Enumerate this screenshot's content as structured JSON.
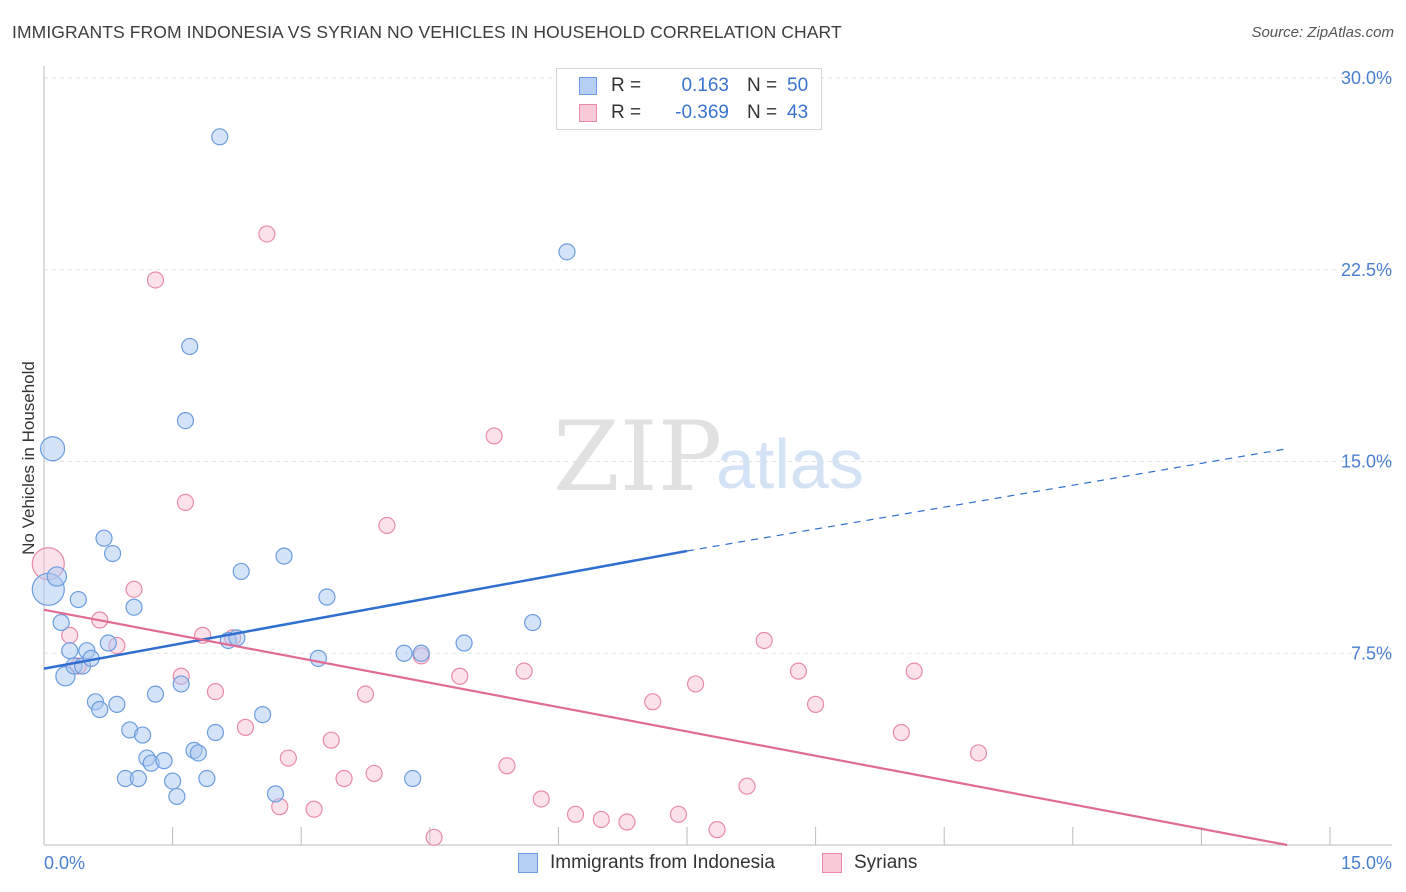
{
  "header": {
    "title": "IMMIGRANTS FROM INDONESIA VS SYRIAN NO VEHICLES IN HOUSEHOLD CORRELATION CHART",
    "source": "Source: ZipAtlas.com"
  },
  "watermark": {
    "part1": "ZIP",
    "part2": "atlas"
  },
  "legend": {
    "rows": [
      {
        "r_label": "R =",
        "r_value": "0.163",
        "n_label": "N =",
        "n_value": "50"
      },
      {
        "r_label": "R =",
        "r_value": "-0.369",
        "n_label": "N =",
        "n_value": "43"
      }
    ]
  },
  "chart_data": {
    "type": "scatter",
    "title": "IMMIGRANTS FROM INDONESIA VS SYRIAN NO VEHICLES IN HOUSEHOLD CORRELATION CHART",
    "xlabel": "",
    "ylabel": "No Vehicles in Household",
    "xlim": [
      0,
      15
    ],
    "ylim": [
      0,
      30
    ],
    "x_tick_labels": [
      "0.0%",
      "15.0%"
    ],
    "y_ticks": [
      7.5,
      15.0,
      22.5,
      30.0
    ],
    "y_tick_labels": [
      "7.5%",
      "15.0%",
      "22.5%",
      "30.0%"
    ],
    "grid": true,
    "legend_position": "bottom",
    "colors": {
      "indonesia_fill": "#a9c7ef",
      "indonesia_stroke": "#6b9de0",
      "indonesia_line": "#2f6fcf",
      "syrians_fill": "#f6bfd0",
      "syrians_stroke": "#e98aa8",
      "syrians_line": "#e06b96"
    },
    "series": [
      {
        "name": "Immigrants from Indonesia",
        "r": 0.163,
        "n": 50,
        "trend": {
          "x0": 0.0,
          "y0": 6.9,
          "x1": 7.5,
          "y1": 11.5,
          "dash_x1": 14.5,
          "dash_y1": 15.5
        },
        "points": [
          {
            "x": 0.05,
            "y": 10.0,
            "s": 2
          },
          {
            "x": 0.1,
            "y": 15.5,
            "s": 1.5
          },
          {
            "x": 0.15,
            "y": 10.5,
            "s": 1.2
          },
          {
            "x": 0.2,
            "y": 8.7,
            "s": 1
          },
          {
            "x": 0.25,
            "y": 6.6,
            "s": 1.2
          },
          {
            "x": 0.3,
            "y": 7.6,
            "s": 1
          },
          {
            "x": 0.35,
            "y": 7.0,
            "s": 1
          },
          {
            "x": 0.4,
            "y": 9.6,
            "s": 1
          },
          {
            "x": 0.45,
            "y": 7.0,
            "s": 1
          },
          {
            "x": 0.5,
            "y": 7.6,
            "s": 1
          },
          {
            "x": 0.55,
            "y": 7.3,
            "s": 1
          },
          {
            "x": 0.6,
            "y": 5.6,
            "s": 1
          },
          {
            "x": 0.65,
            "y": 5.3,
            "s": 1
          },
          {
            "x": 0.7,
            "y": 12.0,
            "s": 1
          },
          {
            "x": 0.75,
            "y": 7.9,
            "s": 1
          },
          {
            "x": 0.8,
            "y": 11.4,
            "s": 1
          },
          {
            "x": 0.85,
            "y": 5.5,
            "s": 1
          },
          {
            "x": 0.95,
            "y": 2.6,
            "s": 1
          },
          {
            "x": 1.0,
            "y": 4.5,
            "s": 1
          },
          {
            "x": 1.05,
            "y": 9.3,
            "s": 1
          },
          {
            "x": 1.1,
            "y": 2.6,
            "s": 1
          },
          {
            "x": 1.15,
            "y": 4.3,
            "s": 1
          },
          {
            "x": 1.2,
            "y": 3.4,
            "s": 1
          },
          {
            "x": 1.25,
            "y": 3.2,
            "s": 1
          },
          {
            "x": 1.3,
            "y": 5.9,
            "s": 1
          },
          {
            "x": 1.4,
            "y": 3.3,
            "s": 1
          },
          {
            "x": 1.5,
            "y": 2.5,
            "s": 1
          },
          {
            "x": 1.55,
            "y": 1.9,
            "s": 1
          },
          {
            "x": 1.6,
            "y": 6.3,
            "s": 1
          },
          {
            "x": 1.65,
            "y": 16.6,
            "s": 1
          },
          {
            "x": 1.7,
            "y": 19.5,
            "s": 1
          },
          {
            "x": 1.75,
            "y": 3.7,
            "s": 1
          },
          {
            "x": 1.8,
            "y": 3.6,
            "s": 1
          },
          {
            "x": 1.9,
            "y": 2.6,
            "s": 1
          },
          {
            "x": 2.0,
            "y": 4.4,
            "s": 1
          },
          {
            "x": 2.05,
            "y": 27.7,
            "s": 1
          },
          {
            "x": 2.15,
            "y": 8.0,
            "s": 1
          },
          {
            "x": 2.25,
            "y": 8.1,
            "s": 1
          },
          {
            "x": 2.3,
            "y": 10.7,
            "s": 1
          },
          {
            "x": 2.55,
            "y": 5.1,
            "s": 1
          },
          {
            "x": 2.7,
            "y": 2.0,
            "s": 1
          },
          {
            "x": 2.8,
            "y": 11.3,
            "s": 1
          },
          {
            "x": 3.2,
            "y": 7.3,
            "s": 1
          },
          {
            "x": 3.3,
            "y": 9.7,
            "s": 1
          },
          {
            "x": 4.2,
            "y": 7.5,
            "s": 1
          },
          {
            "x": 4.3,
            "y": 2.6,
            "s": 1
          },
          {
            "x": 4.4,
            "y": 7.5,
            "s": 1
          },
          {
            "x": 4.9,
            "y": 7.9,
            "s": 1
          },
          {
            "x": 5.7,
            "y": 8.7,
            "s": 1
          },
          {
            "x": 6.1,
            "y": 23.2,
            "s": 1
          }
        ]
      },
      {
        "name": "Syrians",
        "r": -0.369,
        "n": 43,
        "trend": {
          "x0": 0.0,
          "y0": 9.2,
          "x1": 14.5,
          "y1": 0.0
        },
        "points": [
          {
            "x": 0.05,
            "y": 11.0,
            "s": 2
          },
          {
            "x": 0.4,
            "y": 7.0,
            "s": 1
          },
          {
            "x": 0.3,
            "y": 8.2,
            "s": 1
          },
          {
            "x": 0.65,
            "y": 8.8,
            "s": 1
          },
          {
            "x": 0.85,
            "y": 7.8,
            "s": 1
          },
          {
            "x": 1.05,
            "y": 10.0,
            "s": 1
          },
          {
            "x": 1.3,
            "y": 22.1,
            "s": 1
          },
          {
            "x": 1.6,
            "y": 6.6,
            "s": 1
          },
          {
            "x": 1.65,
            "y": 13.4,
            "s": 1
          },
          {
            "x": 1.85,
            "y": 8.2,
            "s": 1
          },
          {
            "x": 2.0,
            "y": 6.0,
            "s": 1
          },
          {
            "x": 2.2,
            "y": 8.1,
            "s": 1
          },
          {
            "x": 2.35,
            "y": 4.6,
            "s": 1
          },
          {
            "x": 2.6,
            "y": 23.9,
            "s": 1
          },
          {
            "x": 2.75,
            "y": 1.5,
            "s": 1
          },
          {
            "x": 2.85,
            "y": 3.4,
            "s": 1
          },
          {
            "x": 3.15,
            "y": 1.4,
            "s": 1
          },
          {
            "x": 3.35,
            "y": 4.1,
            "s": 1
          },
          {
            "x": 3.5,
            "y": 2.6,
            "s": 1
          },
          {
            "x": 3.75,
            "y": 5.9,
            "s": 1
          },
          {
            "x": 3.85,
            "y": 2.8,
            "s": 1
          },
          {
            "x": 4.0,
            "y": 12.5,
            "s": 1
          },
          {
            "x": 4.4,
            "y": 7.4,
            "s": 1
          },
          {
            "x": 4.55,
            "y": 0.3,
            "s": 1
          },
          {
            "x": 4.85,
            "y": 6.6,
            "s": 1
          },
          {
            "x": 5.25,
            "y": 16.0,
            "s": 1
          },
          {
            "x": 5.4,
            "y": 3.1,
            "s": 1
          },
          {
            "x": 5.6,
            "y": 6.8,
            "s": 1
          },
          {
            "x": 5.8,
            "y": 1.8,
            "s": 1
          },
          {
            "x": 6.2,
            "y": 1.2,
            "s": 1
          },
          {
            "x": 6.5,
            "y": 1.0,
            "s": 1
          },
          {
            "x": 6.8,
            "y": 0.9,
            "s": 1
          },
          {
            "x": 7.1,
            "y": 5.6,
            "s": 1
          },
          {
            "x": 7.4,
            "y": 1.2,
            "s": 1
          },
          {
            "x": 7.6,
            "y": 6.3,
            "s": 1
          },
          {
            "x": 7.85,
            "y": 0.6,
            "s": 1
          },
          {
            "x": 8.2,
            "y": 2.3,
            "s": 1
          },
          {
            "x": 8.4,
            "y": 8.0,
            "s": 1
          },
          {
            "x": 8.8,
            "y": 6.8,
            "s": 1
          },
          {
            "x": 9.0,
            "y": 5.5,
            "s": 1
          },
          {
            "x": 10.0,
            "y": 4.4,
            "s": 1
          },
          {
            "x": 10.15,
            "y": 6.8,
            "s": 1
          },
          {
            "x": 10.9,
            "y": 3.6,
            "s": 1
          }
        ]
      }
    ]
  }
}
